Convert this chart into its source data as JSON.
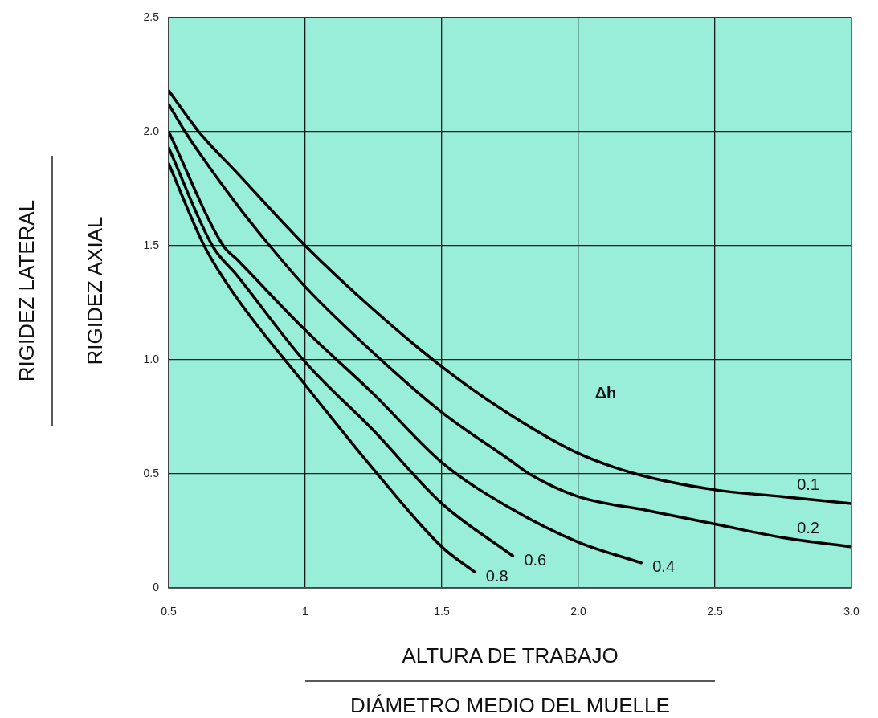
{
  "chart_data": {
    "type": "line",
    "xlabel": "ALTURA DE TRABAJO\nDIÁMETRO MEDIO DEL MUELLE",
    "ylabel": "RIGIDEZ LATERAL\nRIGIDEZ AXIAL",
    "legend_title": "Δh",
    "xlim": [
      0.5,
      3.0
    ],
    "ylim": [
      0,
      2.5
    ],
    "xticks": [
      0.5,
      1,
      1.5,
      {
        "value": 2,
        "label": "2.0"
      },
      2.5,
      {
        "value": 3,
        "label": "3.0"
      }
    ],
    "yticks": [
      0,
      0.5,
      {
        "value": 1,
        "label": "1.0"
      },
      1.5,
      {
        "value": 2,
        "label": "2.0"
      },
      2.5
    ],
    "grid": true,
    "legend": false,
    "marker": "none",
    "line_style": "solid",
    "series": [
      {
        "name": "0.1",
        "color": "#000000",
        "x": [
          0.5,
          0.61,
          0.75,
          1.0,
          1.25,
          1.5,
          1.75,
          2.0,
          2.21,
          2.5,
          2.75,
          3.0
        ],
        "values": [
          2.18,
          2.0,
          1.82,
          1.5,
          1.22,
          0.97,
          0.76,
          0.59,
          0.5,
          0.43,
          0.4,
          0.37
        ]
      },
      {
        "name": "0.2",
        "color": "#000000",
        "x": [
          0.5,
          0.56,
          0.75,
          0.87,
          1.0,
          1.25,
          1.5,
          1.75,
          1.82,
          2.0,
          2.25,
          2.5,
          2.75,
          3.0
        ],
        "values": [
          2.12,
          2.0,
          1.68,
          1.5,
          1.32,
          1.03,
          0.77,
          0.56,
          0.5,
          0.4,
          0.34,
          0.28,
          0.22,
          0.18
        ]
      },
      {
        "name": "0.4",
        "color": "#000000",
        "x": [
          0.5,
          0.7,
          0.75,
          1.0,
          1.25,
          1.5,
          1.75,
          2.0,
          2.23
        ],
        "values": [
          2.0,
          1.5,
          1.44,
          1.13,
          0.85,
          0.55,
          0.35,
          0.2,
          0.11
        ]
      },
      {
        "name": "0.6",
        "color": "#000000",
        "x": [
          0.5,
          0.66,
          0.75,
          1.0,
          1.25,
          1.5,
          1.76
        ],
        "values": [
          1.93,
          1.5,
          1.37,
          0.99,
          0.69,
          0.37,
          0.14
        ]
      },
      {
        "name": "0.8",
        "color": "#000000",
        "x": [
          0.5,
          0.63,
          0.75,
          1.0,
          1.25,
          1.5,
          1.62
        ],
        "values": [
          1.86,
          1.5,
          1.27,
          0.89,
          0.52,
          0.18,
          0.07
        ]
      }
    ]
  }
}
